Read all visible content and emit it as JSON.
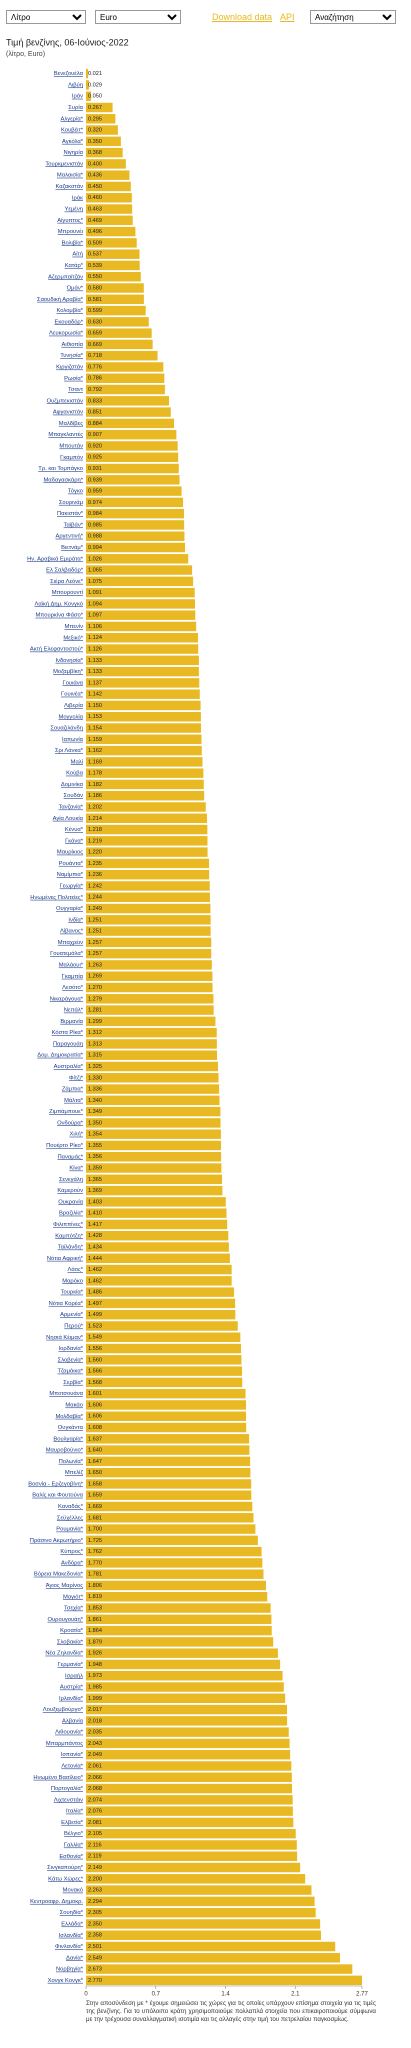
{
  "controls": {
    "unit": "Λίτρο",
    "currency": "Euro",
    "download": "Download data",
    "api": "API",
    "search": "Αναζήτηση"
  },
  "chart_data": {
    "type": "hbar",
    "title": "Τιμή βενζίνης, 06-Ιούνιος-2022",
    "subtitle": "(λίτρο, Euro)",
    "color": "#e8b923",
    "categories": [
      "Βενεζουέλα",
      "Λιβύη",
      "Ιράν",
      "Συρία",
      "Αλγερία*",
      "Κουβέιτ*",
      "Αγκόλα*",
      "Νιγηρία",
      "Τουρκμενιστάν",
      "Μαλαισία*",
      "Καζακστάν",
      "Ιράκ",
      "Υεμένη",
      "Αίγυπτος*",
      "Μπρουνέι",
      "Βολιβία*",
      "Αϊτή",
      "Κατάρ*",
      "Αζερμπαϊτζάν",
      "Ομάν*",
      "Σαουδική Αραβία*",
      "Κολομβία*",
      "Εκουαδόρ*",
      "Λευκορωσία*",
      "Αιθιοπία",
      "Τυνησία*",
      "Κιργιζστάν",
      "Ρωσία*",
      "Τσαντ",
      "Ουζμπεκιστάν",
      "Αφγανιστάν",
      "Μαλδίβες",
      "Μπαγκλαντές",
      "Μπουτάν",
      "Γκαμπόν",
      "Τρ. και Τομπάγκο",
      "Μαδαγασκάρη*",
      "Τόγκο",
      "Σουρινάμ",
      "Πακιστάν*",
      "Ταϊβάν*",
      "Αργεντινή*",
      "Βιετνάμ*",
      "Ην. Αραβικά Εμιράτα*",
      "Ελ Σαλβαδόρ*",
      "Σιέρα Λεόνε*",
      "Μπουρουντί",
      "Λαϊκή Δημ. Κονγκό",
      "Μπουρκίνα Φάσο*",
      "Μπενίν",
      "Μεξικό*",
      "Ακτή Ελεφαντοστού*",
      "Ινδονησία*",
      "Μοζαμβίκη*",
      "Γουιάνα",
      "Γουινέα*",
      "Λιβερία",
      "Μογγολία",
      "Σουαζιλάνδη",
      "Ιαπωνία",
      "Σρι Λάνκα*",
      "Μαλί",
      "Κούβα",
      "Δομινίκα",
      "Σουδάν",
      "Τανζανία*",
      "Αγία Λουκία",
      "Κένυα*",
      "Γκάνα*",
      "Μαυρίκιος",
      "Ρουάντα*",
      "Ναμίμπια*",
      "Γεωργία*",
      "Ηνωμένες Πολιτείες*",
      "Ουγγαρία*",
      "Ινδία*",
      "Λίβανος*",
      "Μπαχρέιν",
      "Γουατεμάλα*",
      "Μαλάουι*",
      "Γκαμπία",
      "Λεσότο*",
      "Νικαράγουα*",
      "Νεπάλ*",
      "Βιρμανία",
      "Κόστα Ρίκα*",
      "Παραγουάη",
      "Δομ. Δημοκρατία*",
      "Αυστραλία*",
      "Φίτζι*",
      "Ζάμπια*",
      "Μάλτα*",
      "Ζιμπάμπουε*",
      "Ονδούρα*",
      "Χιλή*",
      "Πουέρτο Ρίκο*",
      "Παναμάς*",
      "Κίνα*",
      "Σενεγάλη",
      "Καμερούν",
      "Ουκρανία",
      "Βραζιλία*",
      "Φιλιππίνες*",
      "Καμπότζη*",
      "Ταϊλάνδη*",
      "Νότια Αφρική*",
      "Λάος*",
      "Μαρόκο",
      "Τουρκία*",
      "Νότια Κορέα*",
      "Αρμενία*",
      "Περού*",
      "Νησιά Κέιμαν*",
      "Ιορδανία*",
      "Σλοβενία*",
      "Τζαμάικα*",
      "Σερβία*",
      "Μποτσουάνα",
      "Μακάο",
      "Μολδαβία*",
      "Ουγκάντα",
      "Βουλγαρία*",
      "Μαυροβούνιο*",
      "Πολωνία*",
      "Μπελίζ",
      "Βοσνία - Ερζεγοβίνη*",
      "Βαλίς και Φουτούνα",
      "Καναδάς*",
      "Σεϋχέλλες",
      "Ρουμανία*",
      "Πράσινο Ακρωτήριο*",
      "Κύπρος*",
      "Ανδόρα*",
      "Βόρεια Μακεδονία*",
      "Άγιος Μαρίνος",
      "Μαγιότ*",
      "Τσεχία*",
      "Ουρουγουάη*",
      "Κροατία*",
      "Σλοβακία*",
      "Νέα Ζηλανδία*",
      "Γερμανία*",
      "Ισραήλ",
      "Αυστρία*",
      "Ιρλανδία*",
      "Λουξεμβούργο*",
      "Αλβανία",
      "Λιθουανία*",
      "Μπαρμπάντος",
      "Ισπανία*",
      "Λετονία*",
      "Ηνωμένο Βασίλειο*",
      "Πορτογαλία*",
      "Λιχτενστάιν",
      "Ιταλία*",
      "Ελβετία*",
      "Βέλγιο*",
      "Γαλλία*",
      "Εσθονία*",
      "Σινγκαπούρη*",
      "Κάτω Χώρες*",
      "Μονακό",
      "Κεντροαφρ. Δημοκρ.",
      "Σουηδία*",
      "Ελλάδα*",
      "Ισλανδία*",
      "Φινλανδία*",
      "Δανία*",
      "Νορβηγία*",
      "Χονγκ Κονγκ*"
    ],
    "values": [
      0.021,
      0.029,
      0.05,
      0.267,
      0.295,
      0.32,
      0.35,
      0.368,
      0.4,
      0.436,
      0.45,
      0.46,
      0.463,
      0.469,
      0.496,
      0.509,
      0.537,
      0.539,
      0.55,
      0.58,
      0.581,
      0.599,
      0.63,
      0.659,
      0.669,
      0.718,
      0.776,
      0.786,
      0.792,
      0.833,
      0.851,
      0.884,
      0.907,
      0.92,
      0.925,
      0.931,
      0.939,
      0.959,
      0.974,
      0.984,
      0.985,
      0.988,
      0.994,
      1.026,
      1.065,
      1.075,
      1.091,
      1.094,
      1.097,
      1.106,
      1.124,
      1.126,
      1.133,
      1.133,
      1.137,
      1.142,
      1.15,
      1.153,
      1.154,
      1.159,
      1.162,
      1.169,
      1.178,
      1.182,
      1.186,
      1.202,
      1.214,
      1.218,
      1.219,
      1.22,
      1.235,
      1.236,
      1.242,
      1.244,
      1.249,
      1.251,
      1.251,
      1.257,
      1.257,
      1.263,
      1.269,
      1.27,
      1.279,
      1.281,
      1.299,
      1.312,
      1.313,
      1.315,
      1.325,
      1.33,
      1.336,
      1.34,
      1.349,
      1.35,
      1.354,
      1.355,
      1.356,
      1.359,
      1.365,
      1.369,
      1.403,
      1.41,
      1.417,
      1.428,
      1.434,
      1.444,
      1.462,
      1.462,
      1.486,
      1.497,
      1.499,
      1.523,
      1.549,
      1.556,
      1.56,
      1.566,
      1.568,
      1.601,
      1.606,
      1.606,
      1.608,
      1.637,
      1.64,
      1.647,
      1.65,
      1.658,
      1.659,
      1.669,
      1.681,
      1.7,
      1.725,
      1.762,
      1.77,
      1.781,
      1.806,
      1.819,
      1.853,
      1.861,
      1.864,
      1.879,
      1.926,
      1.948,
      1.973,
      1.985,
      1.999,
      2.017,
      2.018,
      2.035,
      2.043,
      2.049,
      2.061,
      2.066,
      2.068,
      2.074,
      2.076,
      2.081,
      2.105,
      2.116,
      2.119,
      2.149,
      2.2,
      2.263,
      2.294,
      2.305,
      2.35,
      2.358,
      2.501,
      2.549,
      2.673,
      2.77
    ],
    "value_labels": [
      "0.021",
      "0.029",
      "0.050",
      "0.267",
      "0.295",
      "0.320",
      "0.350",
      "0.368",
      "0.400",
      "0.436",
      "0.450",
      "0.460",
      "0.463",
      "0.469",
      "0.496",
      "0.509",
      "0.537",
      "0.539",
      "0.550",
      "0.580",
      "0.581",
      "0.599",
      "0.630",
      "0.659",
      "0.669",
      "0.718",
      "0.776",
      "0.786",
      "0.792",
      "0.833",
      "0.851",
      "0.884",
      "0.907",
      "0.920",
      "0.925",
      "0.931",
      "0.939",
      "0.959",
      "0.974",
      "0.984",
      "0.985",
      "0.988",
      "0.994",
      "1.026",
      "1.065",
      "1.075",
      "1.091",
      "1.094",
      "1.097",
      "1.106",
      "1.124",
      "1.126",
      "1.133",
      "1.133",
      "1.137",
      "1.142",
      "1.150",
      "1.153",
      "1.154",
      "1.159",
      "1.162",
      "1.169",
      "1.178",
      "1.182",
      "1.186",
      "1.202",
      "1.214",
      "1.218",
      "1.219",
      "1.220",
      "1.235",
      "1.236",
      "1.242",
      "1.244",
      "1.249",
      "1.251",
      "1.251",
      "1.257",
      "1.257",
      "1.263",
      "1.269",
      "1.270",
      "1.279",
      "1.281",
      "1.299",
      "1.312",
      "1.313",
      "1.315",
      "1.325",
      "1.330",
      "1.336",
      "1.340",
      "1.349",
      "1.350",
      "1.354",
      "1.355",
      "1.356",
      "1.359",
      "1.365",
      "1.369",
      "1.403",
      "1.410",
      "1.417",
      "1.428",
      "1.434",
      "1.444",
      "1.462",
      "1.462",
      "1.486",
      "1.497",
      "1.499",
      "1.523",
      "1.549",
      "1.556",
      "1.560",
      "1.566",
      "1.568",
      "1.601",
      "1.606",
      "1.606",
      "1.608",
      "1.637",
      "1.640",
      "1.647",
      "1.650",
      "1.658",
      "1.659",
      "1.669",
      "1.681",
      "1.700",
      "1.725",
      "1.762",
      "1.770",
      "1.781",
      "1.806",
      "1.819",
      "1.853",
      "1.861",
      "1.864",
      "1.879",
      "1.926",
      "1.948",
      "1.973",
      "1.985",
      "1.999",
      "2.017",
      "2.018",
      "2.035",
      "2.043",
      "2.049",
      "2.061",
      "2.066",
      "2.068",
      "2.074",
      "2.076",
      "2.081",
      "2.105",
      "2.116",
      "2.119",
      "2.149",
      "2.200",
      "2.263",
      "2.294",
      "2.305",
      "2.350",
      "2.358",
      "2.501",
      "2.549",
      "2.673",
      "2.770"
    ],
    "xlim": [
      0,
      2.77
    ],
    "xticks": [
      0,
      0.7,
      1.4,
      2.1,
      2.77
    ]
  },
  "footnote": "Στην αποσύνδεση με * έχουμε σημειώσει τις χώρες για τις οποίες υπάρχουν επίσημα στοιχεία για τις τιμές της βενζίνης. Για το υπόλοιπο κράτη χρησιμοποιούμε πολλαπλά στοιχεία που επικαιροποιούμε σύμφωνα με την τρέχουσα συναλλαγματική ισοτιμία και τις αλλαγές στην τιμή του πετρελαίου παγκοσμίως."
}
